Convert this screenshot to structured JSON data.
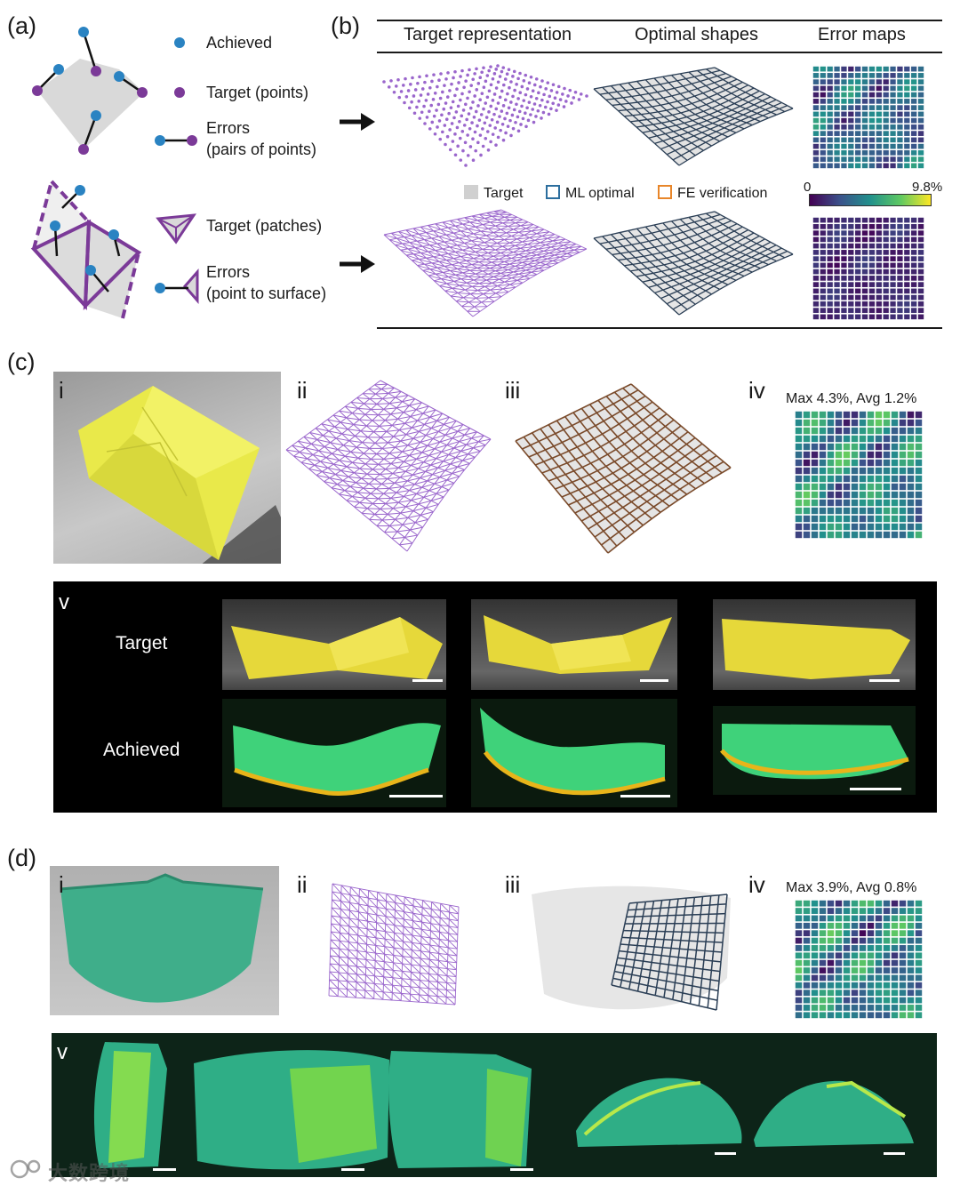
{
  "panel_a": {
    "label": "(a)",
    "legend": {
      "achieved": "Achieved",
      "target_points": "Target (points)",
      "errors_pairs_line1": "Errors",
      "errors_pairs_line2": "(pairs of points)",
      "target_patches": "Target (patches)",
      "errors_surface_line1": "Errors",
      "errors_surface_line2": "(point to surface)"
    }
  },
  "panel_b": {
    "label": "(b)",
    "columns": [
      "Target representation",
      "Optimal shapes",
      "Error maps"
    ],
    "legend": [
      "Target",
      "ML optimal",
      "FE verification"
    ],
    "colorbar": {
      "min": "0",
      "max": "9.8%"
    }
  },
  "panel_c": {
    "label": "(c)",
    "subpanels": [
      "i",
      "ii",
      "iii",
      "iv"
    ],
    "error_stats": "Max 4.3%, Avg 1.2%",
    "v_label": "v",
    "row_labels": [
      "Target",
      "Achieved"
    ]
  },
  "panel_d": {
    "label": "(d)",
    "subpanels": [
      "i",
      "ii",
      "iii",
      "iv"
    ],
    "error_stats": "Max 3.9%, Avg 0.8%",
    "v_label": "v"
  },
  "colors": {
    "achieved": "#2a83c2",
    "target": "#7b3a98",
    "ml_optimal": "#2c6e9e",
    "fe_verification": "#e8862a",
    "mesh": "#9a66cc"
  },
  "watermark": "大数跨境"
}
